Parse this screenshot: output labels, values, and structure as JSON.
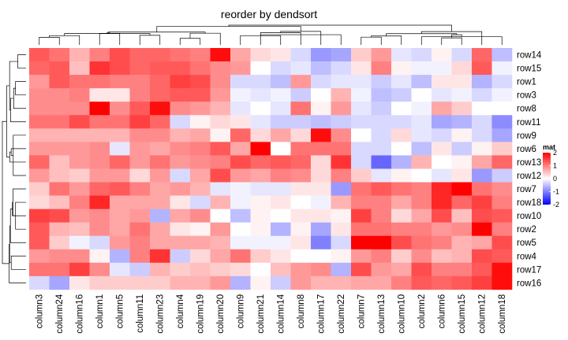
{
  "chart_data": {
    "type": "heatmap",
    "title": "reorder by dendsort",
    "columns": [
      "column3",
      "column24",
      "column16",
      "column1",
      "column5",
      "column11",
      "column23",
      "column4",
      "column19",
      "column20",
      "column9",
      "column21",
      "column14",
      "column8",
      "column17",
      "column22",
      "column7",
      "column13",
      "column10",
      "column2",
      "column6",
      "column15",
      "column12",
      "column18"
    ],
    "rows": [
      "row14",
      "row15",
      "row1",
      "row3",
      "row8",
      "row11",
      "row9",
      "row6",
      "row13",
      "row12",
      "row7",
      "row18",
      "row10",
      "row2",
      "row5",
      "row4",
      "row17",
      "row16"
    ],
    "values": [
      [
        1.3,
        1.1,
        0.6,
        1.0,
        1.4,
        1.2,
        1.2,
        1.1,
        1.0,
        1.9,
        0.7,
        0.3,
        0.2,
        -0.3,
        -0.8,
        -0.7,
        0.4,
        0.8,
        -0.2,
        -0.3,
        0.1,
        -0.3,
        1.2,
        -0.5
      ],
      [
        1.2,
        1.3,
        0.5,
        1.6,
        1.4,
        1.2,
        1.3,
        1.3,
        1.1,
        0.9,
        0.8,
        0.0,
        -0.3,
        -0.2,
        -0.5,
        -0.3,
        0.2,
        1.0,
        0.1,
        -0.1,
        -0.1,
        0.3,
        1.3,
        -0.1
      ],
      [
        0.8,
        1.3,
        1.1,
        1.1,
        1.0,
        1.0,
        1.2,
        1.5,
        1.4,
        0.9,
        -0.3,
        -0.3,
        -0.5,
        0.8,
        -0.3,
        -0.2,
        -0.2,
        -0.4,
        -0.2,
        -0.5,
        0.2,
        0.2,
        -0.6,
        -0.3
      ],
      [
        0.9,
        0.9,
        1.0,
        0.2,
        0.2,
        1.0,
        1.2,
        1.3,
        1.3,
        0.8,
        -0.1,
        -0.2,
        -0.1,
        -0.4,
        0.0,
        0.6,
        -0.1,
        -0.5,
        -0.4,
        0.0,
        -0.2,
        -0.1,
        -0.3,
        -0.1
      ],
      [
        0.9,
        0.9,
        0.9,
        2.0,
        0.9,
        1.3,
        1.9,
        0.9,
        0.8,
        0.6,
        -0.2,
        0.0,
        -0.2,
        1.1,
        0.1,
        0.8,
        -0.2,
        -0.4,
        0.0,
        -0.1,
        0.7,
        0.4,
        0.0,
        0.0
      ],
      [
        1.1,
        1.1,
        1.4,
        1.1,
        1.1,
        1.5,
        1.2,
        -0.3,
        0.1,
        0.3,
        0.2,
        -0.2,
        -0.4,
        -0.4,
        -0.5,
        -0.4,
        -0.3,
        -0.3,
        -0.3,
        -0.2,
        -0.7,
        -0.6,
        -0.3,
        -0.9
      ],
      [
        0.6,
        0.6,
        0.6,
        0.6,
        0.6,
        0.9,
        0.9,
        0.6,
        0.7,
        0.1,
        1.2,
        0.3,
        0.7,
        0.3,
        1.9,
        0.9,
        0.0,
        -0.3,
        0.3,
        -0.2,
        -0.3,
        0.1,
        -0.3,
        -0.7
      ],
      [
        0.8,
        0.8,
        0.8,
        0.9,
        -0.2,
        0.8,
        0.7,
        0.9,
        1.0,
        1.3,
        0.7,
        2.0,
        0.0,
        1.1,
        1.1,
        1.1,
        -0.3,
        -0.3,
        0.0,
        -0.5,
        0.2,
        -0.4,
        0.1,
        0.4
      ],
      [
        1.2,
        0.5,
        0.8,
        0.9,
        1.2,
        0.8,
        1.1,
        0.8,
        0.9,
        1.0,
        1.4,
        1.2,
        1.3,
        1.2,
        0.3,
        1.6,
        -0.3,
        -1.2,
        -0.6,
        0.6,
        0.0,
        0.1,
        0.7,
        1.2
      ],
      [
        0.8,
        0.5,
        0.4,
        0.8,
        0.8,
        0.3,
        0.8,
        -0.3,
        0.7,
        1.4,
        0.8,
        0.7,
        1.0,
        0.9,
        0.3,
        1.0,
        0.4,
        -0.2,
        0.1,
        0.0,
        -0.2,
        0.2,
        -0.8,
        -0.4
      ],
      [
        0.4,
        1.1,
        0.8,
        1.2,
        1.3,
        1.0,
        0.7,
        0.8,
        0.6,
        -0.2,
        -0.1,
        -0.2,
        -0.2,
        0.2,
        0.2,
        -0.8,
        1.1,
        1.3,
        1.1,
        1.0,
        1.7,
        2.0,
        1.1,
        0.9
      ],
      [
        0.3,
        0.5,
        1.0,
        1.7,
        0.7,
        0.7,
        0.7,
        0.2,
        -0.3,
        0.6,
        -0.1,
        0.1,
        0.2,
        0.0,
        -0.1,
        0.6,
        1.0,
        1.0,
        0.7,
        1.0,
        1.7,
        1.2,
        1.5,
        1.0
      ],
      [
        1.5,
        1.4,
        0.8,
        0.9,
        0.7,
        0.8,
        -0.6,
        0.7,
        0.9,
        0.0,
        -0.5,
        0.1,
        0.0,
        0.2,
        0.2,
        0.1,
        1.5,
        1.0,
        0.3,
        0.7,
        1.4,
        0.5,
        1.4,
        1.3
      ],
      [
        1.3,
        0.6,
        0.5,
        0.9,
        0.7,
        1.1,
        0.7,
        0.2,
        0.1,
        0.8,
        0.0,
        0.1,
        -0.6,
        0.1,
        -0.7,
        0.2,
        1.1,
        1.1,
        1.0,
        1.0,
        0.8,
        0.9,
        2.0,
        1.0
      ],
      [
        1.3,
        0.4,
        -0.1,
        -0.3,
        0.8,
        1.0,
        0.7,
        0.7,
        0.7,
        0.6,
        -0.1,
        -0.1,
        -0.1,
        0.2,
        -1.0,
        -0.3,
        2.0,
        2.0,
        1.4,
        1.1,
        1.0,
        0.6,
        0.7,
        1.4
      ],
      [
        0.8,
        0.9,
        0.9,
        0.1,
        -0.6,
        1.0,
        1.6,
        -0.4,
        0.3,
        0.7,
        1.1,
        0.4,
        0.2,
        0.0,
        0.0,
        0.1,
        0.8,
        1.0,
        0.4,
        0.9,
        0.5,
        0.6,
        1.4,
        1.3
      ],
      [
        1.1,
        1.1,
        1.5,
        0.9,
        -0.2,
        -0.4,
        0.6,
        0.4,
        0.5,
        0.4,
        0.3,
        0.0,
        0.5,
        0.8,
        0.9,
        -0.6,
        1.4,
        0.8,
        0.7,
        1.4,
        1.0,
        1.0,
        1.3,
        1.9
      ],
      [
        -0.3,
        -0.7,
        0.2,
        0.4,
        0.4,
        0.4,
        0.4,
        0.6,
        0.6,
        0.8,
        -0.6,
        0.1,
        -0.4,
        0.8,
        0.6,
        0.6,
        0.7,
        0.7,
        1.0,
        1.3,
        1.2,
        1.3,
        1.5,
        1.9
      ]
    ],
    "legend": {
      "title": "mat",
      "ticks": [
        2,
        1,
        0,
        -1,
        -2
      ],
      "tick_labels": [
        "2",
        "1",
        "0",
        "-1",
        "-2"
      ],
      "range": [
        -2,
        2
      ],
      "colors": {
        "low": "#0000FF",
        "mid": "#FFFFFF",
        "high": "#FF0000"
      }
    },
    "dendrograms": {
      "column": true,
      "row": true
    },
    "grid": false
  }
}
